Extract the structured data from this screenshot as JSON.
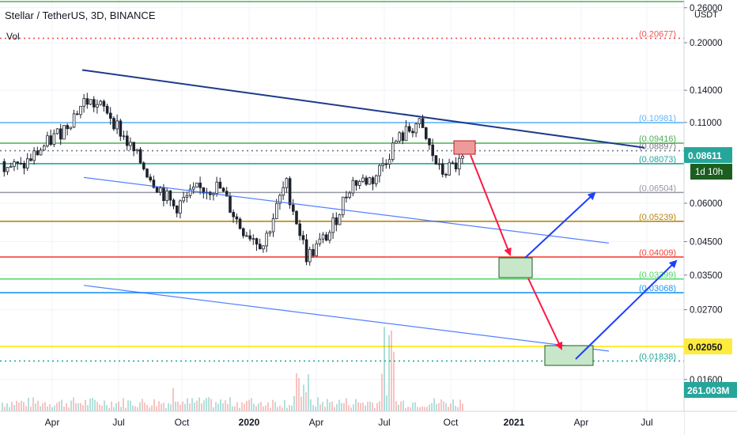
{
  "header": {
    "title": "Stellar / TetherUS, 3D, BINANCE",
    "indicator": "Vol"
  },
  "chart_data": {
    "type": "candlestick",
    "symbol": "XLM/USDT",
    "timeframe": "3D",
    "exchange": "BINANCE",
    "y_scale": "log",
    "ylim": [
      0.0146,
      0.26
    ],
    "y_unit": "USDT",
    "y_ticks": [
      "0.26000",
      "0.20000",
      "0.14000",
      "0.11000",
      "0.08611",
      "0.06000",
      "0.04500",
      "0.03500",
      "0.02700",
      "0.02050",
      "0.01600"
    ],
    "x_ticks": [
      "Apr",
      "Jul",
      "Oct",
      "2020",
      "Apr",
      "Jul",
      "Oct",
      "2021",
      "Apr",
      "Jul"
    ],
    "price_series": {
      "name": "XLM/USDT close (approx.)",
      "x": [
        "2019-01",
        "2019-02",
        "2019-03",
        "2019-04",
        "2019-05",
        "2019-06",
        "2019-07",
        "2019-08",
        "2019-09",
        "2019-10",
        "2019-11",
        "2019-12",
        "2020-01",
        "2020-02",
        "2020-03",
        "2020-04",
        "2020-05",
        "2020-06",
        "2020-07",
        "2020-08",
        "2020-09",
        "2020-10"
      ],
      "y": [
        0.082,
        0.078,
        0.09,
        0.105,
        0.13,
        0.12,
        0.092,
        0.072,
        0.058,
        0.066,
        0.068,
        0.05,
        0.044,
        0.07,
        0.04,
        0.048,
        0.07,
        0.072,
        0.095,
        0.11,
        0.075,
        0.082
      ]
    },
    "horizontal_levels": [
      {
        "value": 0.20677,
        "label": "(0.20677)",
        "color": "#ef5350",
        "style": "dotted"
      },
      {
        "value": 0.10981,
        "label": "(0.10981)",
        "color": "#64b5f6",
        "style": "solid"
      },
      {
        "value": 0.09416,
        "label": "(0.09416)",
        "color": "#4caf50",
        "style": "solid"
      },
      {
        "value": 0.08897,
        "label": "(0.08897)",
        "color": "#787b86",
        "style": "dotted"
      },
      {
        "value": 0.08073,
        "label": "(0.08073)",
        "color": "#26a69a",
        "style": "solid"
      },
      {
        "value": 0.06504,
        "label": "(0.06504)",
        "color": "#9598a1",
        "style": "solid"
      },
      {
        "value": 0.05239,
        "label": "(0.05239)",
        "color": "#b8860b",
        "style": "solid"
      },
      {
        "value": 0.04009,
        "label": "(0.04009)",
        "color": "#f44336",
        "style": "solid"
      },
      {
        "value": 0.03399,
        "label": "(0.03399)",
        "color": "#4cd964",
        "style": "solid"
      },
      {
        "value": 0.03068,
        "label": "(0.03068)",
        "color": "#2196f3",
        "style": "solid"
      },
      {
        "value": 0.0205,
        "label": "",
        "color": "#ffeb3b",
        "style": "solid"
      },
      {
        "value": 0.01838,
        "label": "(0.01838)",
        "color": "#26a69a",
        "style": "dotted"
      }
    ],
    "price_tags": [
      {
        "value": 0.08611,
        "label": "0.08611",
        "sub": "1d 10h",
        "bg": "#26a69a"
      },
      {
        "value": 0.0205,
        "label": "0.02050",
        "bg": "#ffeb3b"
      }
    ],
    "volume": {
      "label": "261.003M",
      "bg": "#26a69a"
    },
    "annotations": {
      "trendline_upper": "descending resistance from Apr 2019 high",
      "channel_mid": "descending channel line",
      "channel_lower": "descending support line",
      "projection": "red arrows down to 0.040 and 0.020 zones, blue arrows up after each"
    },
    "colors": {
      "up": "#26a69a",
      "down": "#ef5350",
      "candle_body": "#1e222d"
    },
    "grid": true
  }
}
